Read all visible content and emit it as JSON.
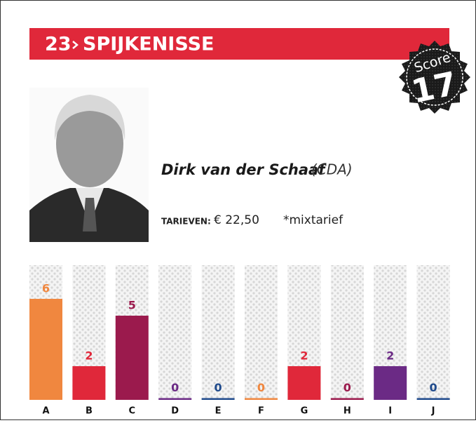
{
  "header": {
    "number": "23",
    "title": "SPIJKENISSE"
  },
  "score": {
    "label": "Score",
    "value": "17"
  },
  "person": {
    "name": "Dirk van der Schaaf",
    "party": "(CDA)"
  },
  "rates": {
    "label": "TARIEVEN:",
    "amount": "€ 22,50",
    "note": "*mixtarief"
  },
  "chart_data": {
    "type": "bar",
    "categories": [
      "A",
      "B",
      "C",
      "D",
      "E",
      "F",
      "G",
      "H",
      "I",
      "J"
    ],
    "values": [
      6,
      2,
      5,
      0,
      0,
      0,
      2,
      0,
      2,
      0
    ],
    "colors": [
      "#f0873f",
      "#e0283a",
      "#9b1a4d",
      "#6b2a85",
      "#1f4a8c",
      "#f0873f",
      "#e0283a",
      "#9b1a4d",
      "#6b2a85",
      "#1f4a8c"
    ]
  }
}
